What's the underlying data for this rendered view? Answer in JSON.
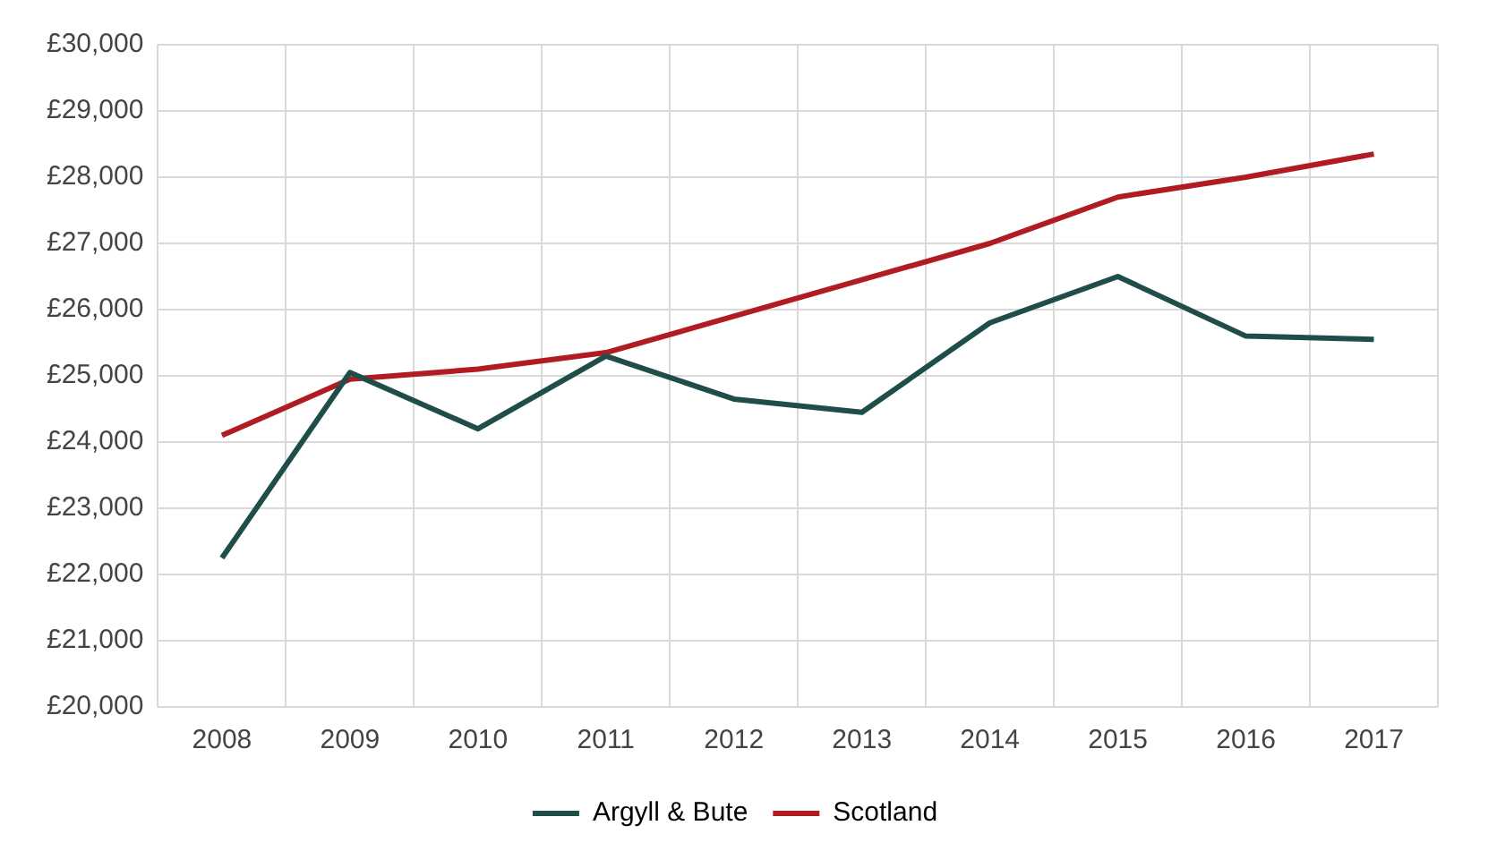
{
  "chart_data": {
    "type": "line",
    "categories": [
      "2008",
      "2009",
      "2010",
      "2011",
      "2012",
      "2013",
      "2014",
      "2015",
      "2016",
      "2017"
    ],
    "series": [
      {
        "name": "Argyll & Bute",
        "color": "#1f4e4a",
        "values": [
          22250,
          25050,
          24200,
          25300,
          24650,
          24450,
          25800,
          26500,
          25600,
          25550
        ]
      },
      {
        "name": "Scotland",
        "color": "#b01c22",
        "values": [
          24100,
          24950,
          25100,
          25350,
          25900,
          26450,
          27000,
          27700,
          28000,
          28350
        ]
      }
    ],
    "ylim": [
      20000,
      30000
    ],
    "yticks": [
      {
        "value": 20000,
        "label": "£20,000"
      },
      {
        "value": 21000,
        "label": "£21,000"
      },
      {
        "value": 22000,
        "label": "£22,000"
      },
      {
        "value": 23000,
        "label": "£23,000"
      },
      {
        "value": 24000,
        "label": "£24,000"
      },
      {
        "value": 25000,
        "label": "£25,000"
      },
      {
        "value": 26000,
        "label": "£26,000"
      },
      {
        "value": 27000,
        "label": "£27,000"
      },
      {
        "value": 28000,
        "label": "£28,000"
      },
      {
        "value": 29000,
        "label": "£29,000"
      },
      {
        "value": 30000,
        "label": "£30,000"
      }
    ],
    "grid": true,
    "legend": "bottom",
    "marker": "none",
    "line_style": "solid"
  }
}
